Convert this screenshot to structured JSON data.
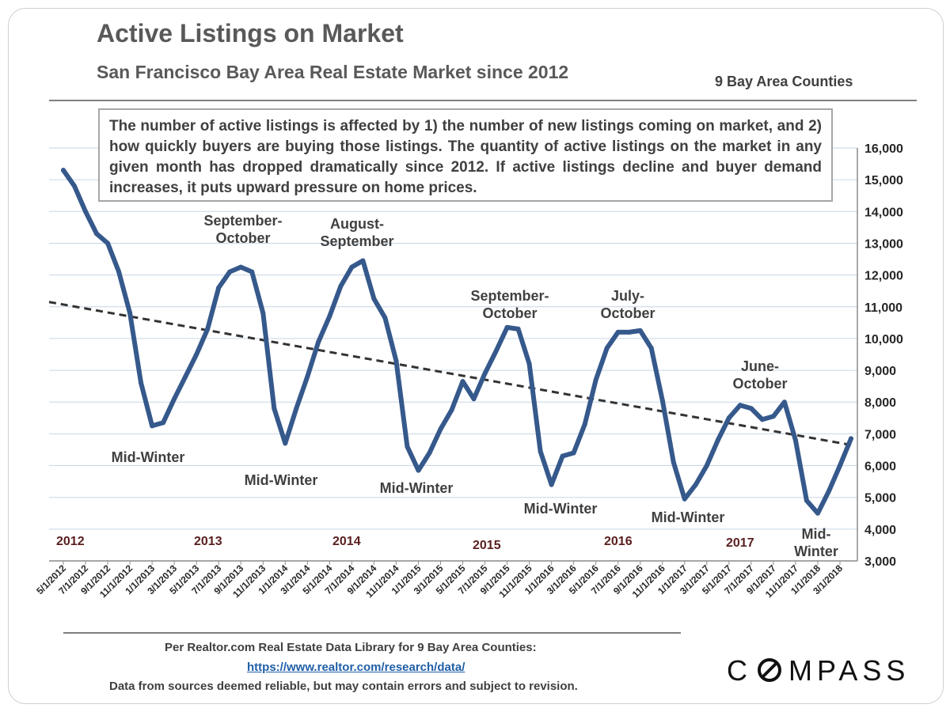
{
  "header": {
    "title": "Active Listings on Market",
    "subtitle": "San Francisco Bay Area Real Estate Market since 2012",
    "region_note": "9 Bay Area Counties"
  },
  "description": "The number of active listings is affected by 1) the number of new listings coming on market, and 2) how quickly buyers are buying those listings. The quantity of active listings on the market in any given month has dropped dramatically since 2012. If active listings decline and buyer demand increases, it puts upward pressure on home prices.",
  "footer": {
    "source_line": "Per Realtor.com Real Estate  Data Library for 9 Bay Area Counties:",
    "source_link": "https://www.realtor.com/research/data/",
    "disclaimer": "Data from sources deemed reliable, but may contain errors and subject to revision.",
    "logo": "COMPASS"
  },
  "colors": {
    "series": "#36598c",
    "trend": "#333333",
    "grid": "#c7d6e6",
    "year_label": "#5a1f1f",
    "text": "#404040"
  },
  "chart_data": {
    "type": "line",
    "title": "Active Listings on Market",
    "subtitle": "San Francisco Bay Area Real Estate Market since 2012",
    "x_tick_labels": [
      "5/1/2012",
      "7/1/2012",
      "9/1/2012",
      "11/1/2012",
      "1/1/2013",
      "3/1/2013",
      "5/1/2013",
      "7/1/2013",
      "9/1/2013",
      "11/1/2013",
      "1/1/2014",
      "3/1/2014",
      "5/1/2014",
      "7/1/2014",
      "9/1/2014",
      "11/1/2014",
      "1/1/2015",
      "3/1/2015",
      "5/1/2015",
      "7/1/2015",
      "9/1/2015",
      "11/1/2015",
      "1/1/2016",
      "3/1/2016",
      "5/1/2016",
      "7/1/2016",
      "9/1/2016",
      "11/1/2016",
      "1/1/2017",
      "3/1/2017",
      "5/1/2017",
      "7/1/2017",
      "9/1/2017",
      "11/1/2017",
      "1/1/2018",
      "3/1/2018"
    ],
    "series": [
      {
        "values": [
          15300,
          14800,
          14000,
          13300,
          13000,
          12100,
          10800,
          8600,
          7250,
          7350,
          8100,
          8800,
          9500,
          10300,
          11600,
          12100,
          12250,
          12100,
          10800,
          7800,
          6700,
          7800,
          8800,
          9900,
          10700,
          11650,
          12250,
          12450,
          11250,
          10650,
          9300,
          6600,
          5850,
          6400,
          7150,
          7750,
          8650,
          8100,
          8900,
          9600,
          10350,
          10300,
          9200,
          6450,
          5400,
          6300,
          6400,
          7300,
          8700,
          9700,
          10200,
          10200,
          10250,
          9700,
          8050,
          6100,
          4950,
          5400,
          6000,
          6800,
          7500,
          7900,
          7800,
          7450,
          7550,
          8000,
          6800,
          4900,
          4500,
          5200,
          6000,
          6850
        ]
      }
    ],
    "trend_line": {
      "style": "dashed",
      "start": 11150,
      "end": 6650
    },
    "y_axis": {
      "min": 3000,
      "max": 16000,
      "step": 1000,
      "position": "right",
      "tick_labels": [
        "3,000",
        "4,000",
        "5,000",
        "6,000",
        "7,000",
        "8,000",
        "9,000",
        "10,000",
        "11,000",
        "12,000",
        "13,000",
        "14,000",
        "15,000",
        "16,000"
      ]
    },
    "years": [
      "2012",
      "2013",
      "2014",
      "2015",
      "2016",
      "2017"
    ],
    "annotations": {
      "peak_2013": [
        "September-",
        "October"
      ],
      "peak_2014": [
        "August-",
        "September"
      ],
      "peak_2015": [
        "September-",
        "October"
      ],
      "peak_2016": [
        "July-",
        "October"
      ],
      "peak_2017": [
        "June-",
        "October"
      ],
      "low_2013": "Mid-Winter",
      "low_2014": "Mid-Winter",
      "low_2015": "Mid-Winter",
      "low_2016": "Mid-Winter",
      "low_2017": "Mid-Winter",
      "low_2018": [
        "Mid-",
        "Winter"
      ]
    },
    "grid": true,
    "legend": "none"
  }
}
